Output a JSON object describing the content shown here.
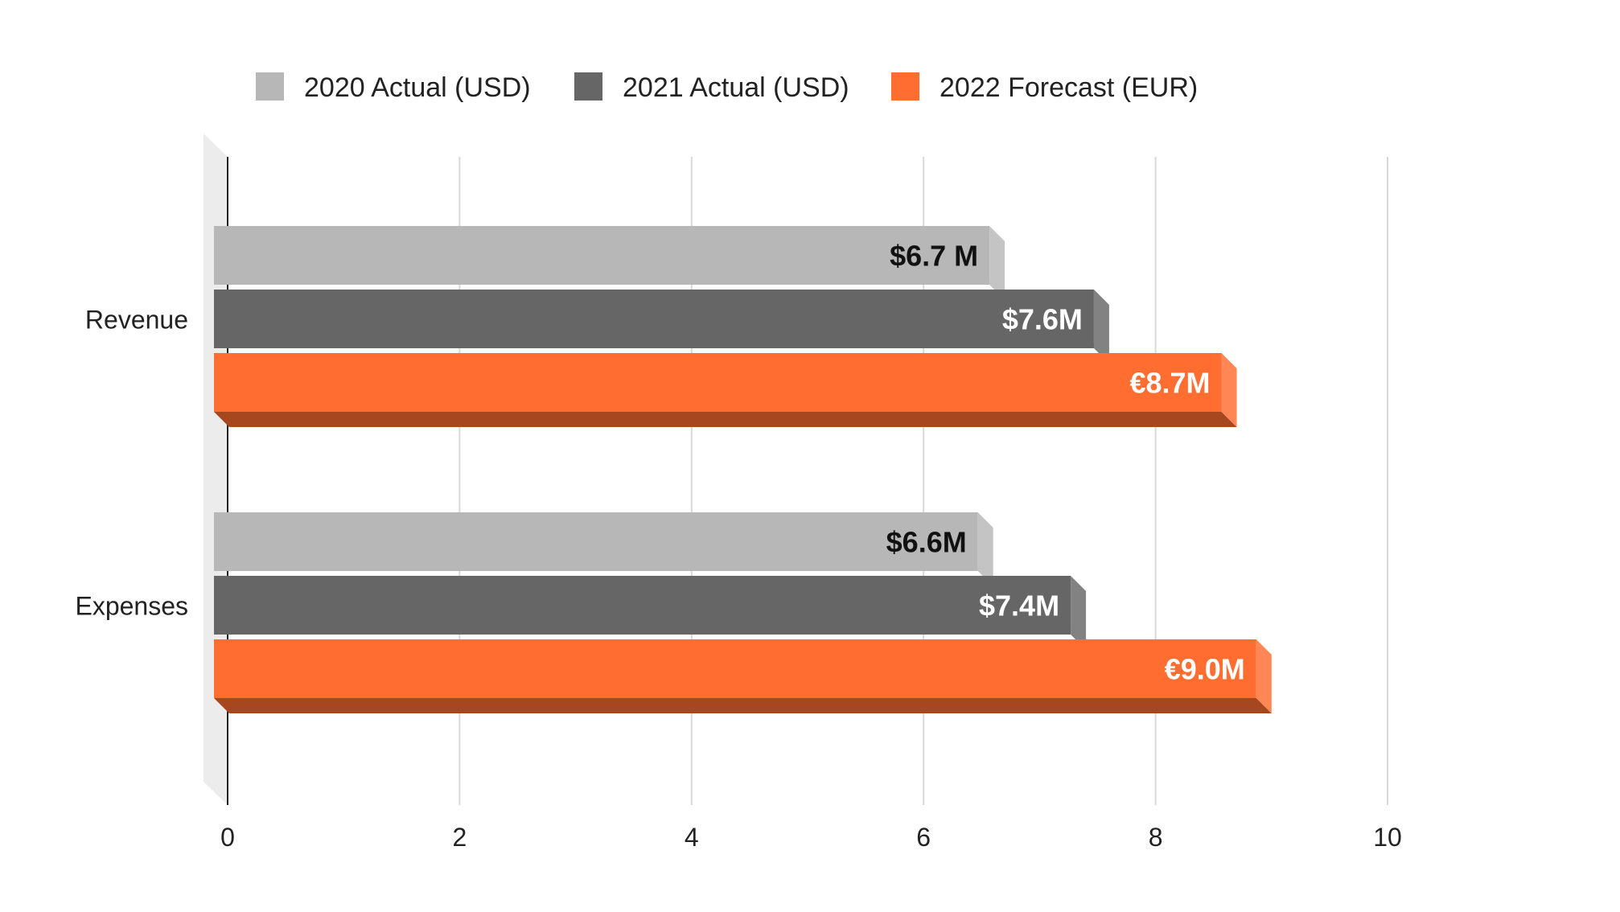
{
  "chart_data": {
    "type": "bar",
    "orientation": "horizontal",
    "style": "3d",
    "categories": [
      "Revenue",
      "Expenses"
    ],
    "series": [
      {
        "name": "2020 Actual (USD)",
        "values": [
          6.7,
          6.6
        ],
        "labels": [
          "$6.7 M",
          "$6.6M"
        ],
        "color": "#b7b7b7",
        "label_color": "#111111"
      },
      {
        "name": "2021 Actual (USD)",
        "values": [
          7.6,
          7.4
        ],
        "labels": [
          "$7.6M",
          "$7.4M"
        ],
        "color": "#666666",
        "label_color": "#ffffff"
      },
      {
        "name": "2022 Forecast (EUR)",
        "values": [
          8.7,
          9.0
        ],
        "labels": [
          "€8.7M",
          "€9.0M"
        ],
        "color": "#ff6d31",
        "label_color": "#ffffff"
      }
    ],
    "xticks": [
      "0",
      "2",
      "4",
      "6",
      "8",
      "10"
    ],
    "xlim": [
      0,
      10
    ],
    "grid": true,
    "legend": "top",
    "title": "",
    "xlabel": "",
    "ylabel": ""
  }
}
